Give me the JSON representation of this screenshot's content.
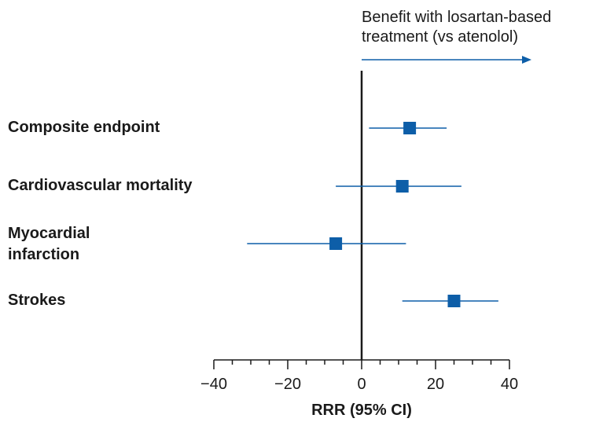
{
  "chart_data": {
    "type": "forest",
    "xlabel": "RRR (95% CI)",
    "xlim": [
      -40,
      40
    ],
    "xticks": [
      -40,
      -20,
      0,
      20,
      40
    ],
    "xtick_labels": [
      "−40",
      "−20",
      "0",
      "20",
      "40"
    ],
    "minor_tick_step": 5,
    "annotation": {
      "line1": "Benefit with losartan-based",
      "line2": "treatment (vs atenolol)",
      "arrow_direction": "right"
    },
    "categories": [
      {
        "line1": "Composite endpoint",
        "line2": "",
        "point": 13,
        "ci_low": 2,
        "ci_high": 23
      },
      {
        "line1": "Cardiovascular mortality",
        "line2": "",
        "point": 11,
        "ci_low": -7,
        "ci_high": 27
      },
      {
        "line1": "Myocardial",
        "line2": "infarction",
        "point": -7,
        "ci_low": -31,
        "ci_high": 12
      },
      {
        "line1": "Strokes",
        "line2": "",
        "point": 25,
        "ci_low": 11,
        "ci_high": 37
      }
    ],
    "colors": {
      "marker": "#0d5ea8",
      "ci_line": "#0d5ea8",
      "axis": "#1a1a1a",
      "zero_line": "#1a1a1a"
    }
  }
}
